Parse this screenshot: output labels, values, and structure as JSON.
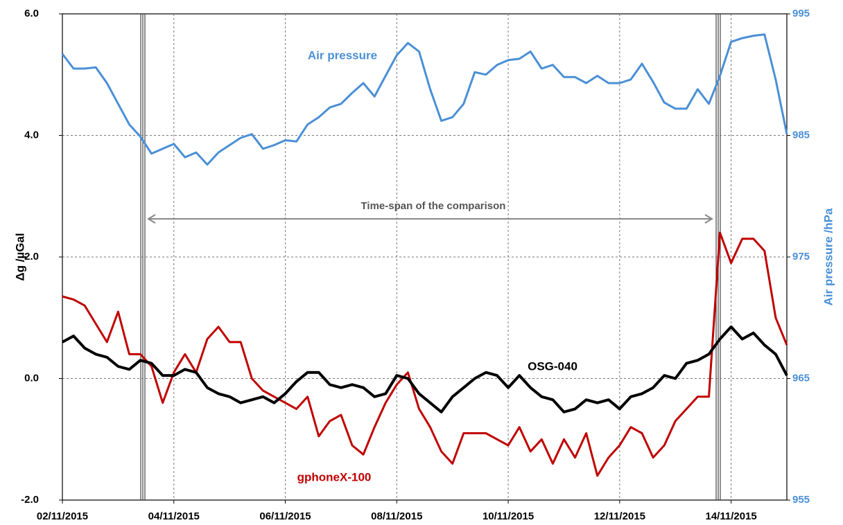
{
  "chart_data": {
    "type": "line",
    "annotation": "Time-span of the comparison",
    "ylabel": "Δg  /µGal",
    "y2label": "Air pressure  /hPa",
    "x": [
      0,
      0.2,
      0.4,
      0.6,
      0.8,
      1,
      1.2,
      1.4,
      1.6,
      1.8,
      2,
      2.2,
      2.4,
      2.6,
      2.8,
      3,
      3.2,
      3.4,
      3.6,
      3.8,
      4,
      4.2,
      4.4,
      4.6,
      4.8,
      5,
      5.2,
      5.4,
      5.6,
      5.8,
      6,
      6.2,
      6.4,
      6.6,
      6.8,
      7,
      7.2,
      7.4,
      7.6,
      7.8,
      8,
      8.2,
      8.4,
      8.6,
      8.8,
      9,
      9.2,
      9.4,
      9.6,
      9.8,
      10,
      10.2,
      10.4,
      10.6,
      10.8,
      11,
      11.2,
      11.4,
      11.6,
      11.8,
      12,
      12.2,
      12.4,
      12.6,
      12.8,
      13
    ],
    "xlim": [
      0,
      13
    ],
    "xticks": [
      {
        "value": 0,
        "label": "02/11/2015"
      },
      {
        "value": 2,
        "label": "04/11/2015"
      },
      {
        "value": 4,
        "label": "06/11/2015"
      },
      {
        "value": 6,
        "label": "08/11/2015"
      },
      {
        "value": 8,
        "label": "10/11/2015"
      },
      {
        "value": 10,
        "label": "12/11/2015"
      },
      {
        "value": 12,
        "label": "14/11/2015"
      }
    ],
    "ylim": [
      -2,
      6
    ],
    "yticks": [
      {
        "value": -2,
        "label": "-2.0"
      },
      {
        "value": 0,
        "label": "0.0"
      },
      {
        "value": 2,
        "label": "2.0"
      },
      {
        "value": 4,
        "label": "4.0"
      },
      {
        "value": 6,
        "label": "6.0"
      }
    ],
    "y2lim": [
      955,
      995
    ],
    "y2ticks": [
      955,
      965,
      975,
      985,
      995
    ],
    "grid": true,
    "series": [
      {
        "name": "gphoneX-100",
        "color": "#c00000",
        "values": [
          1.35,
          1.3,
          1.2,
          0.9,
          0.6,
          1.1,
          0.4,
          0.4,
          0.2,
          -0.4,
          0.1,
          0.4,
          0.1,
          0.65,
          0.85,
          0.6,
          0.6,
          0,
          -0.2,
          -0.3,
          -0.4,
          -0.5,
          -0.3,
          -0.95,
          -0.7,
          -0.6,
          -1.1,
          -1.25,
          -0.8,
          -0.4,
          -0.1,
          0.1,
          -0.5,
          -0.8,
          -1.2,
          -1.4,
          -0.9,
          -0.9,
          -0.9,
          -1,
          -1.1,
          -0.8,
          -1.2,
          -1,
          -1.4,
          -1,
          -1.3,
          -0.9,
          -1.6,
          -1.3,
          -1.1,
          -0.8,
          -0.9,
          -1.3,
          -1.1,
          -0.7,
          -0.5,
          -0.3,
          -0.3,
          2.4,
          1.9,
          2.3,
          2.3,
          2.1,
          1,
          0.55
        ]
      },
      {
        "name": "OSG-040",
        "color": "#000000",
        "values": [
          0.6,
          0.7,
          0.5,
          0.4,
          0.35,
          0.2,
          0.15,
          0.3,
          0.25,
          0.05,
          0.05,
          0.15,
          0.1,
          -0.15,
          -0.25,
          -0.3,
          -0.4,
          -0.35,
          -0.3,
          -0.4,
          -0.25,
          -0.05,
          0.1,
          0.1,
          -0.1,
          -0.15,
          -0.1,
          -0.15,
          -0.3,
          -0.25,
          0.05,
          0,
          -0.25,
          -0.4,
          -0.55,
          -0.3,
          -0.15,
          0,
          0.1,
          0.05,
          -0.15,
          0.05,
          -0.15,
          -0.3,
          -0.35,
          -0.55,
          -0.5,
          -0.35,
          -0.4,
          -0.35,
          -0.5,
          -0.3,
          -0.25,
          -0.15,
          0.05,
          0,
          0.25,
          0.3,
          0.4,
          0.65,
          0.85,
          0.65,
          0.75,
          0.55,
          0.4,
          0.05
        ]
      },
      {
        "name": "Air pressure",
        "color": "#4a8fd6",
        "axis": "y2",
        "values": [
          991.7,
          990.5,
          990.5,
          990.6,
          989.3,
          987.6,
          985.9,
          984.9,
          983.5,
          983.9,
          984.3,
          983.2,
          983.6,
          982.6,
          983.6,
          984.2,
          984.8,
          985.1,
          983.9,
          984.2,
          984.6,
          984.5,
          985.9,
          986.5,
          987.3,
          987.6,
          988.5,
          989.3,
          988.2,
          989.9,
          991.6,
          992.6,
          991.9,
          988.8,
          986.2,
          986.5,
          987.6,
          990.2,
          990,
          990.8,
          991.2,
          991.3,
          991.9,
          990.5,
          990.8,
          989.8,
          989.8,
          989.3,
          989.9,
          989.3,
          989.3,
          989.6,
          990.9,
          989.4,
          987.7,
          987.2,
          987.2,
          988.8,
          987.6,
          989.9,
          992.7,
          993,
          993.2,
          993.3,
          989.6,
          985.1
        ]
      }
    ]
  }
}
